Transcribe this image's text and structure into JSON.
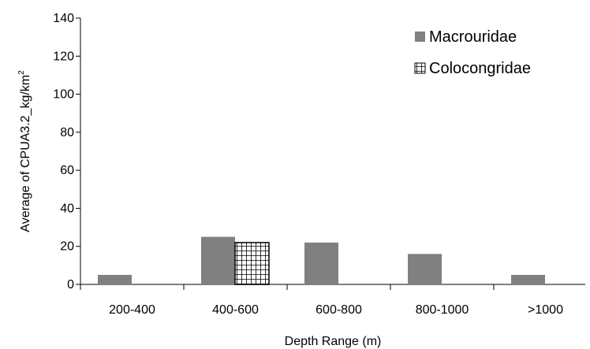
{
  "chart_data": {
    "type": "bar",
    "title": "",
    "xlabel": "Depth Range (m)",
    "ylabel": "Average of CPUA3.2_kg/km",
    "ylabel_superscript": "2",
    "categories": [
      "200-400",
      "400-600",
      "600-800",
      "800-1000",
      ">1000"
    ],
    "series": [
      {
        "name": "Macrouridae",
        "values": [
          5,
          25,
          22,
          16,
          5
        ],
        "color": "#808080",
        "pattern": "solid"
      },
      {
        "name": "Colocongridae",
        "values": [
          null,
          22,
          null,
          null,
          null
        ],
        "color": "#000000",
        "pattern": "grid"
      }
    ],
    "ylim": [
      0,
      140
    ],
    "yticks": [
      0,
      20,
      40,
      60,
      80,
      100,
      120,
      140
    ],
    "grid": false,
    "legend_position": "top-right"
  }
}
